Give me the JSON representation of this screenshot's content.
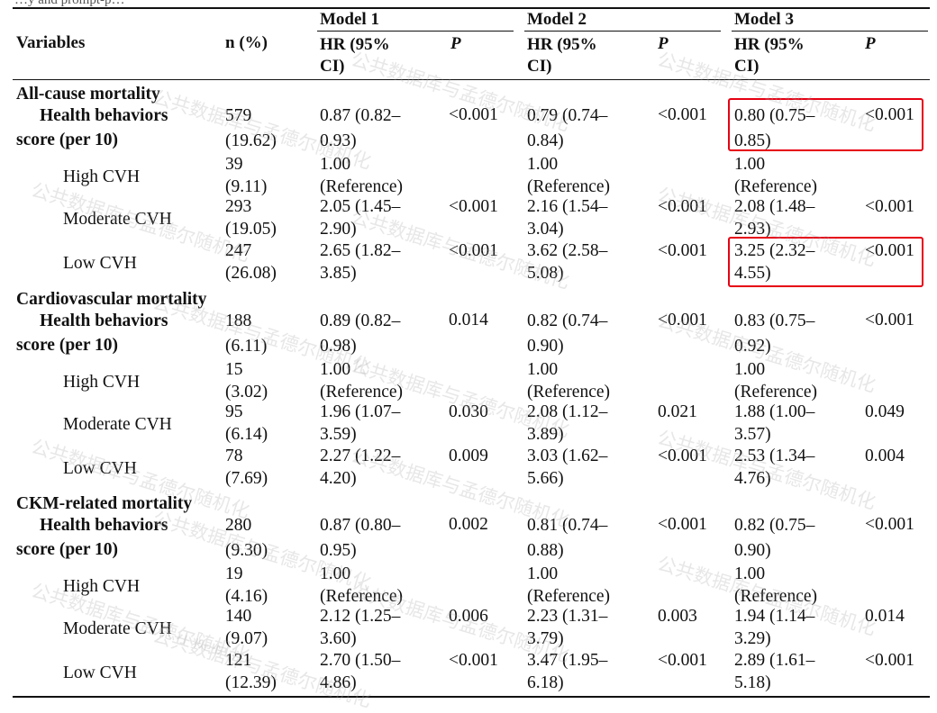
{
  "top_fragment": "…y and prompt-p…",
  "header": {
    "variables": "Variables",
    "n_pct": "n (%)",
    "models": [
      "Model 1",
      "Model 2",
      "Model 3"
    ],
    "hr_line1": "HR (95%",
    "hr_line2": "CI)",
    "p": "P"
  },
  "sections": [
    {
      "title": "All-cause mortality",
      "rows": [
        {
          "label1": "Health behaviors",
          "label2": "score (per 10)",
          "bold": true,
          "n1": "579",
          "n2": "(19.62)",
          "m": [
            [
              "0.87 (0.82–",
              "0.93)",
              "<0.001"
            ],
            [
              "0.79 (0.74–",
              "0.84)",
              "<0.001"
            ],
            [
              "0.80 (0.75–",
              "0.85)",
              "<0.001"
            ]
          ]
        },
        {
          "label1": "High CVH",
          "bold": false,
          "n1": "39",
          "n2": "(9.11)",
          "m": [
            [
              "1.00",
              "(Reference)",
              ""
            ],
            [
              "1.00",
              "(Reference)",
              ""
            ],
            [
              "1.00",
              "(Reference)",
              ""
            ]
          ]
        },
        {
          "label1": "Moderate CVH",
          "bold": false,
          "n1": "293",
          "n2": "(19.05)",
          "m": [
            [
              "2.05 (1.45–",
              "2.90)",
              "<0.001"
            ],
            [
              "2.16 (1.54–",
              "3.04)",
              "<0.001"
            ],
            [
              "2.08 (1.48–",
              "2.93)",
              "<0.001"
            ]
          ]
        },
        {
          "label1": "Low CVH",
          "bold": false,
          "n1": "247",
          "n2": "(26.08)",
          "m": [
            [
              "2.65 (1.82–",
              "3.85)",
              "<0.001"
            ],
            [
              "3.62 (2.58–",
              "5.08)",
              "<0.001"
            ],
            [
              "3.25 (2.32–",
              "4.55)",
              "<0.001"
            ]
          ]
        }
      ]
    },
    {
      "title": "Cardiovascular mortality",
      "rows": [
        {
          "label1": "Health behaviors",
          "label2": "score (per 10)",
          "bold": true,
          "n1": "188",
          "n2": "(6.11)",
          "m": [
            [
              "0.89 (0.82–",
              "0.98)",
              "0.014"
            ],
            [
              "0.82 (0.74–",
              "0.90)",
              "<0.001"
            ],
            [
              "0.83 (0.75–",
              "0.92)",
              "<0.001"
            ]
          ]
        },
        {
          "label1": "High CVH",
          "bold": false,
          "n1": "15",
          "n2": "(3.02)",
          "m": [
            [
              "1.00",
              "(Reference)",
              ""
            ],
            [
              "1.00",
              "(Reference)",
              ""
            ],
            [
              "1.00",
              "(Reference)",
              ""
            ]
          ]
        },
        {
          "label1": "Moderate CVH",
          "bold": false,
          "n1": "95",
          "n2": "(6.14)",
          "m": [
            [
              "1.96 (1.07–",
              "3.59)",
              "0.030"
            ],
            [
              "2.08 (1.12–",
              "3.89)",
              "0.021"
            ],
            [
              "1.88 (1.00–",
              "3.57)",
              "0.049"
            ]
          ]
        },
        {
          "label1": "Low CVH",
          "bold": false,
          "n1": "78",
          "n2": "(7.69)",
          "m": [
            [
              "2.27 (1.22–",
              "4.20)",
              "0.009"
            ],
            [
              "3.03 (1.62–",
              "5.66)",
              "<0.001"
            ],
            [
              "2.53 (1.34–",
              "4.76)",
              "0.004"
            ]
          ]
        }
      ]
    },
    {
      "title": "CKM-related mortality",
      "rows": [
        {
          "label1": "Health behaviors",
          "label2": "score (per 10)",
          "bold": true,
          "n1": "280",
          "n2": "(9.30)",
          "m": [
            [
              "0.87 (0.80–",
              "0.95)",
              "0.002"
            ],
            [
              "0.81 (0.74–",
              "0.88)",
              "<0.001"
            ],
            [
              "0.82 (0.75–",
              "0.90)",
              "<0.001"
            ]
          ]
        },
        {
          "label1": "High CVH",
          "bold": false,
          "n1": "19",
          "n2": "(4.16)",
          "m": [
            [
              "1.00",
              "(Reference)",
              ""
            ],
            [
              "1.00",
              "(Reference)",
              ""
            ],
            [
              "1.00",
              "(Reference)",
              ""
            ]
          ]
        },
        {
          "label1": "Moderate CVH",
          "bold": false,
          "n1": "140",
          "n2": "(9.07)",
          "m": [
            [
              "2.12 (1.25–",
              "3.60)",
              "0.006"
            ],
            [
              "2.23 (1.31–",
              "3.79)",
              "0.003"
            ],
            [
              "1.94 (1.14–",
              "3.29)",
              "0.014"
            ]
          ]
        },
        {
          "label1": "Low CVH",
          "bold": false,
          "n1": "121",
          "n2": "(12.39)",
          "m": [
            [
              "2.70 (1.50–",
              "4.86)",
              "<0.001"
            ],
            [
              "3.47 (1.95–",
              "6.18)",
              "<0.001"
            ],
            [
              "2.89 (1.61–",
              "5.18)",
              "<0.001"
            ]
          ]
        }
      ]
    }
  ],
  "highlight_color": "#e60012",
  "watermark": "公共数据库与孟德尔随机化"
}
